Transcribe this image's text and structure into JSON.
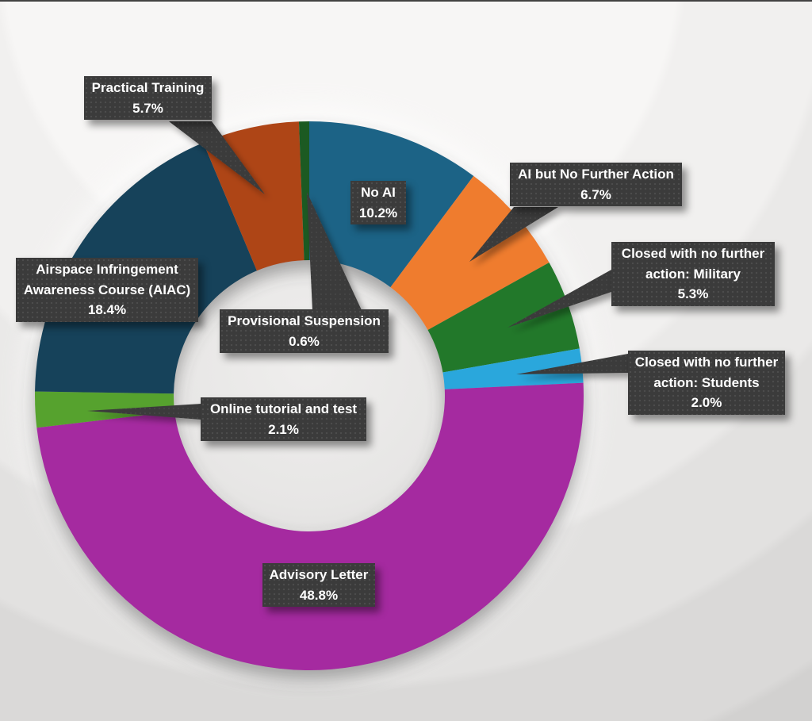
{
  "chart_data": {
    "type": "pie",
    "subtype": "donut",
    "title": "",
    "unit": "percent",
    "direction": "clockwise",
    "start_angle_deg": 0,
    "hole_ratio": 0.49,
    "legend_position": "none",
    "slices": [
      {
        "label": "No AI",
        "value": 10.2,
        "display": "10.2%",
        "color": "#1E6486"
      },
      {
        "label": "AI but No Further Action",
        "value": 6.7,
        "display": "6.7%",
        "color": "#EF7B2E"
      },
      {
        "label": "Closed with no further action: Military",
        "value": 5.3,
        "display": "5.3%",
        "color": "#24782B"
      },
      {
        "label": "Closed with no further action: Students",
        "value": 2.0,
        "display": "2.0%",
        "color": "#29A7DC"
      },
      {
        "label": "Advisory Letter",
        "value": 48.8,
        "display": "48.8%",
        "color": "#A52CA0"
      },
      {
        "label": "Online tutorial and test",
        "value": 2.1,
        "display": "2.1%",
        "color": "#57A22D"
      },
      {
        "label": "Airspace Infringement Awareness Course (AIAC)",
        "value": 18.4,
        "display": "18.4%",
        "color": "#17435A"
      },
      {
        "label": "Practical Training",
        "value": 5.7,
        "display": "5.7%",
        "color": "#AE4518"
      },
      {
        "label": "Provisional Suspension",
        "value": 0.6,
        "display": "0.6%",
        "color": "#1E5A24"
      }
    ]
  },
  "callouts": [
    {
      "label": "Practical Training",
      "pct": "5.7%"
    },
    {
      "label": "No AI",
      "pct": "10.2%"
    },
    {
      "label": "AI but No Further Action",
      "pct": "6.7%"
    },
    {
      "label": "Closed with no further action: Military",
      "pct": "5.3%"
    },
    {
      "label": "Closed with no further action: Students",
      "pct": "2.0%"
    },
    {
      "label": "Advisory Letter",
      "pct": "48.8%"
    },
    {
      "label": "Online tutorial and test",
      "pct": "2.1%"
    },
    {
      "label": "Airspace Infringement Awareness Course (AIAC)",
      "pct": "18.4%"
    },
    {
      "label": "Provisional Suspension",
      "pct": "0.6%"
    }
  ],
  "theme": {
    "callout_bg": "#3B3B3B",
    "callout_text": "#FFFFFF",
    "background_base": "#D9D8D7"
  }
}
